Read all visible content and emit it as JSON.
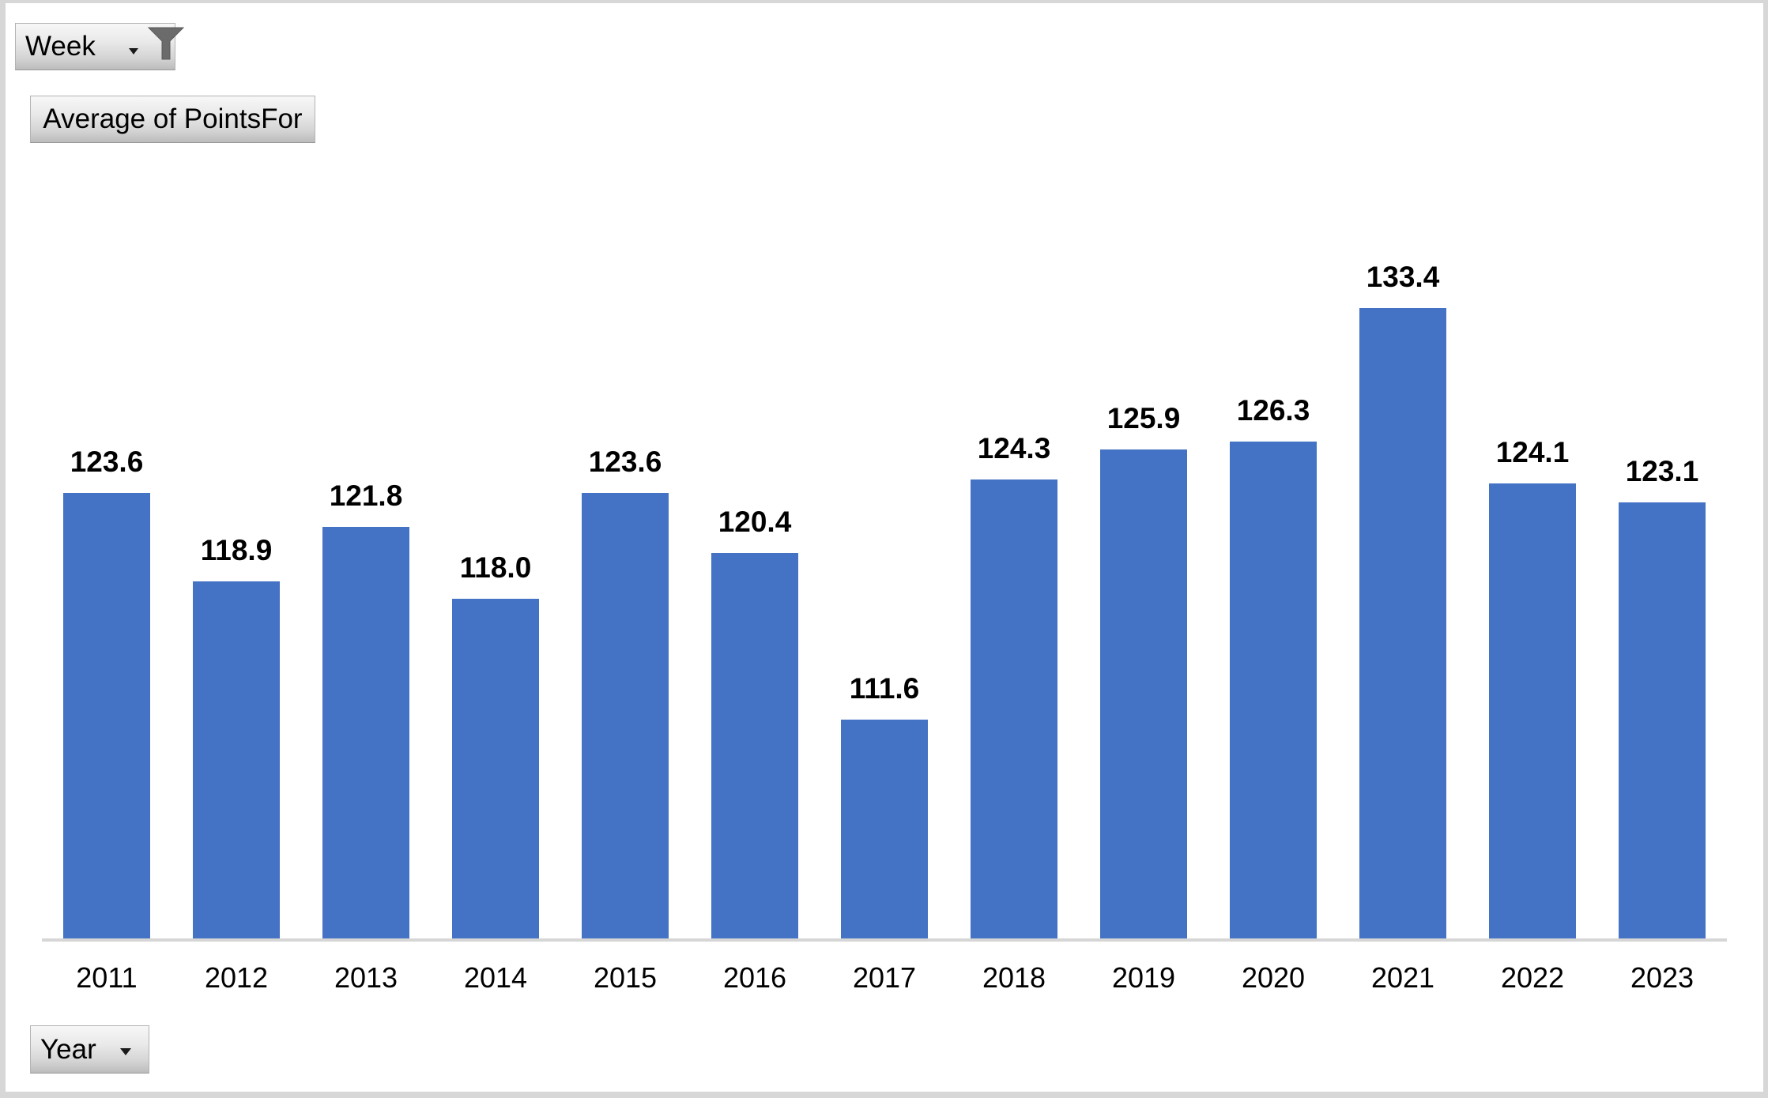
{
  "buttons": {
    "filter_field": {
      "label": "Week"
    },
    "value_field": {
      "label": "Average of PointsFor"
    },
    "axis_field": {
      "label": "Year"
    }
  },
  "icons": {
    "filter_funnel": "filter-funnel-icon",
    "dropdown": "chevron-down-icon"
  },
  "colors": {
    "bar": "#4472C4",
    "axis_line": "#d6d6d6",
    "frame": "#d7d7d7",
    "funnel": "#6b6b6b"
  },
  "chart_data": {
    "type": "bar",
    "title": "Average of PointsFor",
    "categories": [
      "2011",
      "2012",
      "2013",
      "2014",
      "2015",
      "2016",
      "2017",
      "2018",
      "2019",
      "2020",
      "2021",
      "2022",
      "2023"
    ],
    "values": [
      123.6,
      118.9,
      121.8,
      118.0,
      123.6,
      120.4,
      111.6,
      124.3,
      125.9,
      126.3,
      133.4,
      124.1,
      123.1
    ],
    "series": [
      {
        "name": "Average of PointsFor",
        "values": [
          123.6,
          118.9,
          121.8,
          118.0,
          123.6,
          120.4,
          111.6,
          124.3,
          125.9,
          126.3,
          133.4,
          124.1,
          123.1
        ]
      }
    ],
    "xlabel": "Year",
    "ylabel": "",
    "ylim": [
      100,
      140
    ],
    "grid": false,
    "legend": false,
    "data_labels": true,
    "label_decimals": 1
  }
}
